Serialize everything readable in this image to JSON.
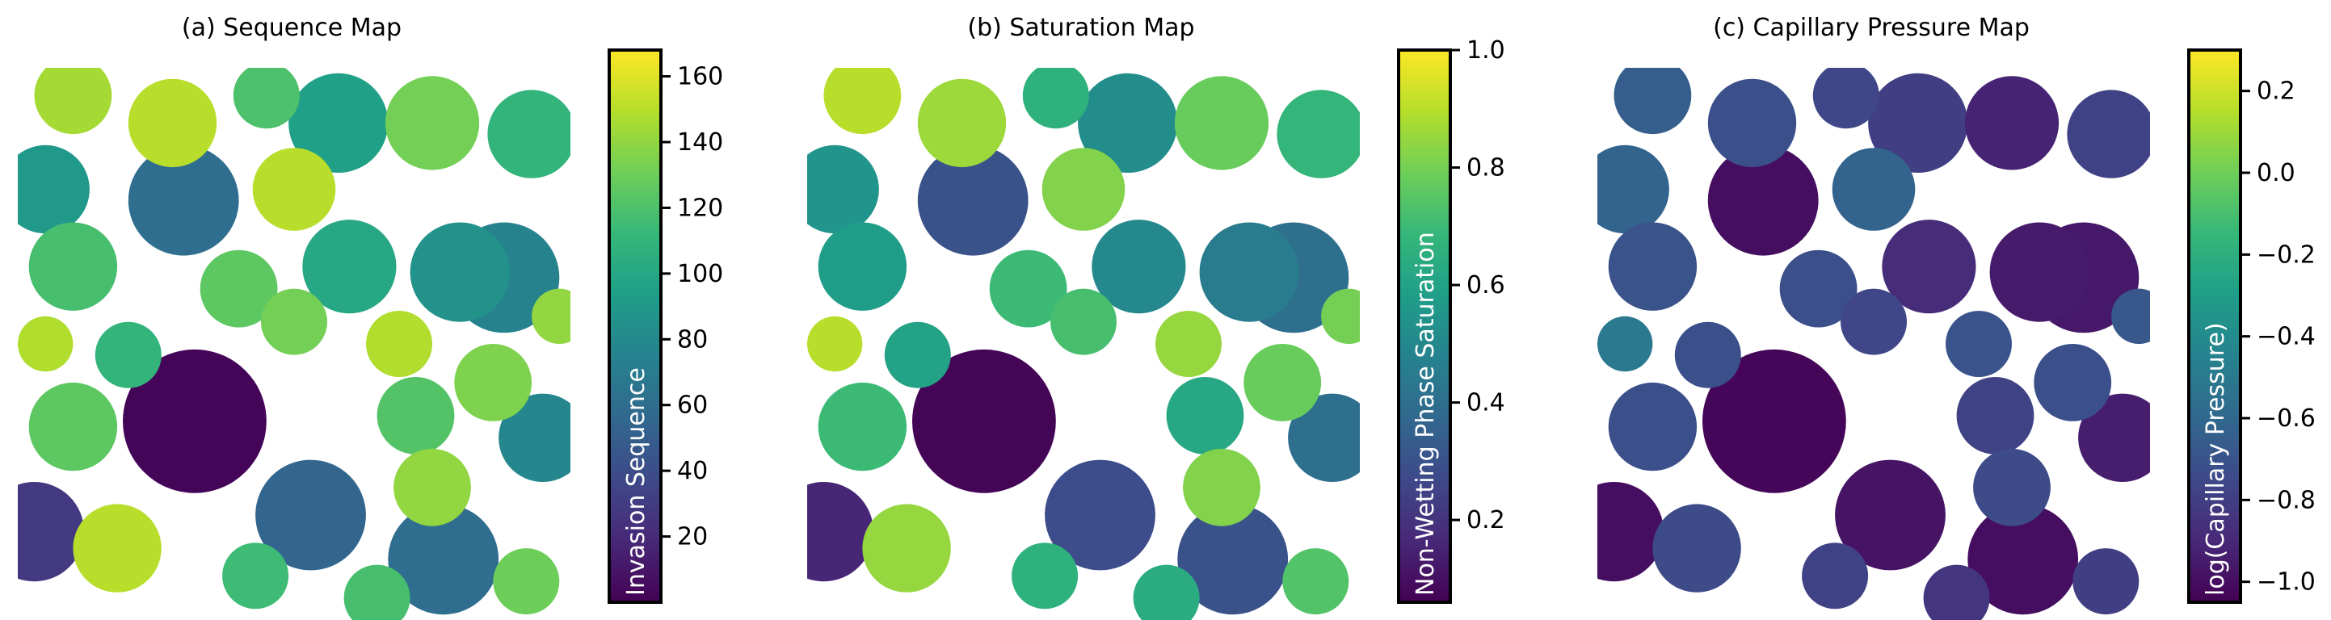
{
  "chart_data": [
    {
      "type": "heatmap",
      "title": "(a) Sequence Map",
      "colorbar": {
        "label": "Invasion Sequence",
        "colormap": "viridis",
        "range": [
          0,
          168
        ],
        "ticks": [
          20,
          40,
          60,
          80,
          100,
          120,
          140,
          160
        ],
        "tick_labels": [
          "20",
          "40",
          "60",
          "80",
          "100",
          "120",
          "140",
          "160"
        ]
      },
      "empty_color": "#ffffff",
      "pores": [
        {
          "cx": 0.58,
          "cy": 0.1,
          "r": 0.09,
          "v": 95
        },
        {
          "cx": 0.75,
          "cy": 0.1,
          "r": 0.085,
          "v": 132
        },
        {
          "cx": 0.93,
          "cy": 0.12,
          "r": 0.08,
          "v": 110
        },
        {
          "cx": 0.1,
          "cy": 0.05,
          "r": 0.07,
          "v": 145
        },
        {
          "cx": 0.28,
          "cy": 0.1,
          "r": 0.08,
          "v": 150
        },
        {
          "cx": 0.3,
          "cy": 0.24,
          "r": 0.1,
          "v": 60
        },
        {
          "cx": 0.05,
          "cy": 0.22,
          "r": 0.08,
          "v": 90
        },
        {
          "cx": 0.1,
          "cy": 0.36,
          "r": 0.08,
          "v": 118
        },
        {
          "cx": 0.5,
          "cy": 0.22,
          "r": 0.075,
          "v": 150
        },
        {
          "cx": 0.6,
          "cy": 0.36,
          "r": 0.085,
          "v": 100
        },
        {
          "cx": 0.8,
          "cy": 0.37,
          "r": 0.09,
          "v": 85
        },
        {
          "cx": 0.88,
          "cy": 0.38,
          "r": 0.1,
          "v": 75
        },
        {
          "cx": 0.32,
          "cy": 0.64,
          "r": 0.13,
          "v": 2
        },
        {
          "cx": 0.1,
          "cy": 0.65,
          "r": 0.08,
          "v": 125
        },
        {
          "cx": 0.03,
          "cy": 0.84,
          "r": 0.09,
          "v": 28
        },
        {
          "cx": 0.18,
          "cy": 0.87,
          "r": 0.08,
          "v": 150
        },
        {
          "cx": 0.53,
          "cy": 0.81,
          "r": 0.1,
          "v": 55
        },
        {
          "cx": 0.77,
          "cy": 0.89,
          "r": 0.1,
          "v": 60
        },
        {
          "cx": 0.95,
          "cy": 0.67,
          "r": 0.08,
          "v": 78
        },
        {
          "cx": 0.72,
          "cy": 0.63,
          "r": 0.07,
          "v": 122
        },
        {
          "cx": 0.5,
          "cy": 0.46,
          "r": 0.06,
          "v": 132
        },
        {
          "cx": 0.86,
          "cy": 0.57,
          "r": 0.07,
          "v": 135
        },
        {
          "cx": 0.69,
          "cy": 0.5,
          "r": 0.06,
          "v": 148
        },
        {
          "cx": 0.43,
          "cy": 0.92,
          "r": 0.06,
          "v": 115
        },
        {
          "cx": 0.92,
          "cy": 0.93,
          "r": 0.06,
          "v": 130
        },
        {
          "cx": 0.65,
          "cy": 0.96,
          "r": 0.06,
          "v": 118
        },
        {
          "cx": 0.05,
          "cy": 0.5,
          "r": 0.05,
          "v": 148
        },
        {
          "cx": 0.4,
          "cy": 0.4,
          "r": 0.07,
          "v": 125
        },
        {
          "cx": 0.98,
          "cy": 0.45,
          "r": 0.05,
          "v": 140
        },
        {
          "cx": 0.75,
          "cy": 0.76,
          "r": 0.07,
          "v": 140
        },
        {
          "cx": 0.2,
          "cy": 0.52,
          "r": 0.06,
          "v": 110
        },
        {
          "cx": 0.45,
          "cy": 0.05,
          "r": 0.06,
          "v": 120
        }
      ]
    },
    {
      "type": "heatmap",
      "title": "(b) Saturation Map",
      "colorbar": {
        "label": "Non-Wetting Phase Saturation",
        "colormap": "viridis",
        "range": [
          0.06,
          1.0
        ],
        "ticks": [
          0.2,
          0.4,
          0.6,
          0.8,
          1.0
        ],
        "tick_labels": [
          "0.2",
          "0.4",
          "0.6",
          "0.8",
          "1.0"
        ]
      },
      "empty_color": "#ffffff",
      "pores": [
        {
          "cx": 0.58,
          "cy": 0.1,
          "r": 0.09,
          "v": 0.52
        },
        {
          "cx": 0.75,
          "cy": 0.1,
          "r": 0.085,
          "v": 0.78
        },
        {
          "cx": 0.93,
          "cy": 0.12,
          "r": 0.08,
          "v": 0.68
        },
        {
          "cx": 0.1,
          "cy": 0.05,
          "r": 0.07,
          "v": 0.9
        },
        {
          "cx": 0.28,
          "cy": 0.1,
          "r": 0.08,
          "v": 0.86
        },
        {
          "cx": 0.3,
          "cy": 0.24,
          "r": 0.1,
          "v": 0.3
        },
        {
          "cx": 0.05,
          "cy": 0.22,
          "r": 0.08,
          "v": 0.55
        },
        {
          "cx": 0.1,
          "cy": 0.36,
          "r": 0.08,
          "v": 0.58
        },
        {
          "cx": 0.5,
          "cy": 0.22,
          "r": 0.075,
          "v": 0.82
        },
        {
          "cx": 0.6,
          "cy": 0.36,
          "r": 0.085,
          "v": 0.5
        },
        {
          "cx": 0.8,
          "cy": 0.37,
          "r": 0.09,
          "v": 0.45
        },
        {
          "cx": 0.88,
          "cy": 0.38,
          "r": 0.1,
          "v": 0.4
        },
        {
          "cx": 0.32,
          "cy": 0.64,
          "r": 0.13,
          "v": 0.07
        },
        {
          "cx": 0.1,
          "cy": 0.65,
          "r": 0.08,
          "v": 0.7
        },
        {
          "cx": 0.03,
          "cy": 0.84,
          "r": 0.09,
          "v": 0.16
        },
        {
          "cx": 0.18,
          "cy": 0.87,
          "r": 0.08,
          "v": 0.85
        },
        {
          "cx": 0.53,
          "cy": 0.81,
          "r": 0.1,
          "v": 0.28
        },
        {
          "cx": 0.77,
          "cy": 0.89,
          "r": 0.1,
          "v": 0.3
        },
        {
          "cx": 0.95,
          "cy": 0.67,
          "r": 0.08,
          "v": 0.4
        },
        {
          "cx": 0.72,
          "cy": 0.63,
          "r": 0.07,
          "v": 0.62
        },
        {
          "cx": 0.5,
          "cy": 0.46,
          "r": 0.06,
          "v": 0.72
        },
        {
          "cx": 0.86,
          "cy": 0.57,
          "r": 0.07,
          "v": 0.78
        },
        {
          "cx": 0.69,
          "cy": 0.5,
          "r": 0.06,
          "v": 0.85
        },
        {
          "cx": 0.43,
          "cy": 0.92,
          "r": 0.06,
          "v": 0.66
        },
        {
          "cx": 0.92,
          "cy": 0.93,
          "r": 0.06,
          "v": 0.74
        },
        {
          "cx": 0.65,
          "cy": 0.96,
          "r": 0.06,
          "v": 0.64
        },
        {
          "cx": 0.05,
          "cy": 0.5,
          "r": 0.05,
          "v": 0.9
        },
        {
          "cx": 0.4,
          "cy": 0.4,
          "r": 0.07,
          "v": 0.7
        },
        {
          "cx": 0.98,
          "cy": 0.45,
          "r": 0.05,
          "v": 0.8
        },
        {
          "cx": 0.75,
          "cy": 0.76,
          "r": 0.07,
          "v": 0.82
        },
        {
          "cx": 0.2,
          "cy": 0.52,
          "r": 0.06,
          "v": 0.6
        },
        {
          "cx": 0.45,
          "cy": 0.05,
          "r": 0.06,
          "v": 0.66
        }
      ]
    },
    {
      "type": "heatmap",
      "title": "(c) Capillary Pressure Map",
      "colorbar": {
        "label": "log(Capillary Pressure)",
        "colormap": "viridis",
        "range": [
          -1.05,
          0.3
        ],
        "ticks": [
          -1.0,
          -0.8,
          -0.6,
          -0.4,
          -0.2,
          0.0,
          0.2
        ],
        "tick_labels": [
          "−1.0",
          "−0.8",
          "−0.6",
          "−0.4",
          "−0.2",
          "0.0",
          "0.2"
        ]
      },
      "empty_color": "#ffffff",
      "pores": [
        {
          "cx": 0.58,
          "cy": 0.1,
          "r": 0.09,
          "v": -0.8
        },
        {
          "cx": 0.75,
          "cy": 0.1,
          "r": 0.085,
          "v": -0.92
        },
        {
          "cx": 0.93,
          "cy": 0.12,
          "r": 0.08,
          "v": -0.78
        },
        {
          "cx": 0.1,
          "cy": 0.05,
          "r": 0.07,
          "v": -0.65
        },
        {
          "cx": 0.28,
          "cy": 0.1,
          "r": 0.08,
          "v": -0.72
        },
        {
          "cx": 0.3,
          "cy": 0.24,
          "r": 0.1,
          "v": -1.0
        },
        {
          "cx": 0.05,
          "cy": 0.22,
          "r": 0.08,
          "v": -0.62
        },
        {
          "cx": 0.1,
          "cy": 0.36,
          "r": 0.08,
          "v": -0.7
        },
        {
          "cx": 0.5,
          "cy": 0.22,
          "r": 0.075,
          "v": -0.62
        },
        {
          "cx": 0.6,
          "cy": 0.36,
          "r": 0.085,
          "v": -0.88
        },
        {
          "cx": 0.8,
          "cy": 0.37,
          "r": 0.09,
          "v": -0.95
        },
        {
          "cx": 0.88,
          "cy": 0.38,
          "r": 0.1,
          "v": -0.96
        },
        {
          "cx": 0.32,
          "cy": 0.64,
          "r": 0.13,
          "v": -1.03
        },
        {
          "cx": 0.1,
          "cy": 0.65,
          "r": 0.08,
          "v": -0.72
        },
        {
          "cx": 0.03,
          "cy": 0.84,
          "r": 0.09,
          "v": -1.0
        },
        {
          "cx": 0.18,
          "cy": 0.87,
          "r": 0.08,
          "v": -0.74
        },
        {
          "cx": 0.53,
          "cy": 0.81,
          "r": 0.1,
          "v": -0.98
        },
        {
          "cx": 0.77,
          "cy": 0.89,
          "r": 0.1,
          "v": -1.0
        },
        {
          "cx": 0.95,
          "cy": 0.67,
          "r": 0.08,
          "v": -0.94
        },
        {
          "cx": 0.72,
          "cy": 0.63,
          "r": 0.07,
          "v": -0.78
        },
        {
          "cx": 0.5,
          "cy": 0.46,
          "r": 0.06,
          "v": -0.76
        },
        {
          "cx": 0.86,
          "cy": 0.57,
          "r": 0.07,
          "v": -0.72
        },
        {
          "cx": 0.69,
          "cy": 0.5,
          "r": 0.06,
          "v": -0.7
        },
        {
          "cx": 0.43,
          "cy": 0.92,
          "r": 0.06,
          "v": -0.78
        },
        {
          "cx": 0.92,
          "cy": 0.93,
          "r": 0.06,
          "v": -0.8
        },
        {
          "cx": 0.65,
          "cy": 0.96,
          "r": 0.06,
          "v": -0.84
        },
        {
          "cx": 0.05,
          "cy": 0.5,
          "r": 0.05,
          "v": -0.5
        },
        {
          "cx": 0.4,
          "cy": 0.4,
          "r": 0.07,
          "v": -0.72
        },
        {
          "cx": 0.98,
          "cy": 0.45,
          "r": 0.05,
          "v": -0.68
        },
        {
          "cx": 0.75,
          "cy": 0.76,
          "r": 0.07,
          "v": -0.74
        },
        {
          "cx": 0.2,
          "cy": 0.52,
          "r": 0.06,
          "v": -0.72
        },
        {
          "cx": 0.45,
          "cy": 0.05,
          "r": 0.06,
          "v": -0.76
        }
      ]
    }
  ]
}
